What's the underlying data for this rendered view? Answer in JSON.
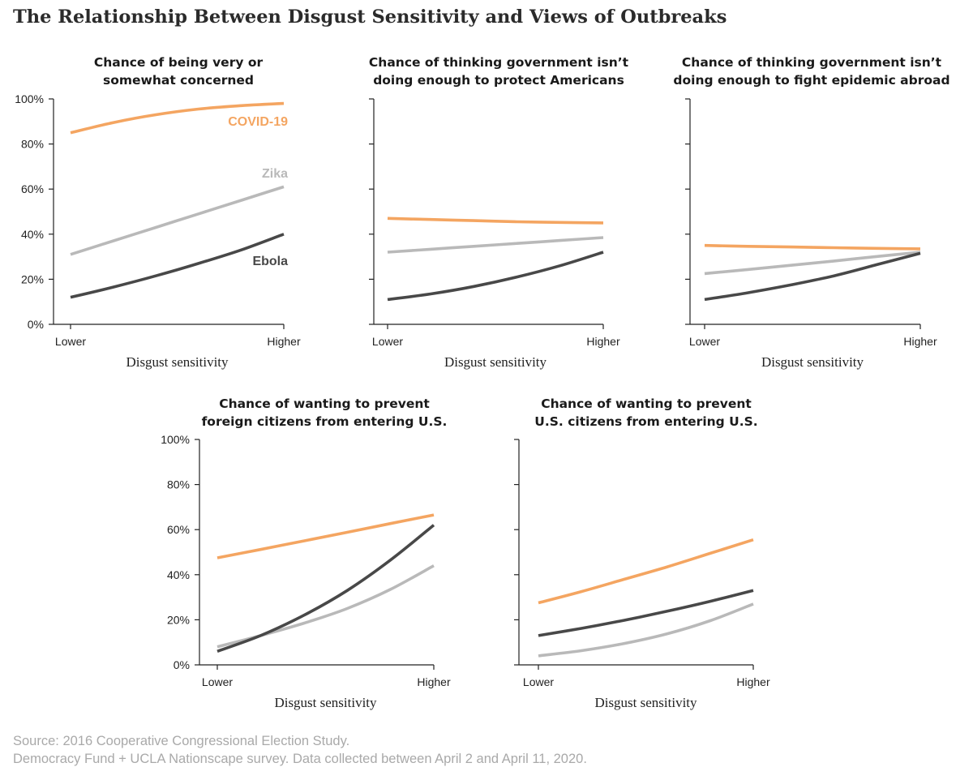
{
  "title": "The Relationship Between Disgust Sensitivity and Views of Outbreaks",
  "source": {
    "line1": "Source: 2016 Cooperative Congressional Election Study.",
    "line2": " Democracy Fund + UCLA Nationscape survey. Data collected between April 2 and April 11, 2020."
  },
  "colors": {
    "covid": "#f4a561",
    "zika": "#b9b9b9",
    "ebola": "#484848",
    "axis": "#222222"
  },
  "chart_data": [
    {
      "type": "line",
      "title": [
        "Chance of being very or",
        "somewhat concerned"
      ],
      "xlabel": "Disgust sensitivity",
      "x_ticks": [
        "Lower",
        "Higher"
      ],
      "ylabel": "",
      "ylim": [
        0,
        100
      ],
      "y_ticks": [
        "0%",
        "20%",
        "40%",
        "60%",
        "80%",
        "100%"
      ],
      "series_labels": [
        {
          "series": "covid",
          "text": "COVID-19"
        },
        {
          "series": "zika",
          "text": "Zika"
        },
        {
          "series": "ebola",
          "text": "Ebola"
        }
      ],
      "series": [
        {
          "key": "covid",
          "name": "COVID-19",
          "values": [
            85,
            89.5,
            93,
            95.5,
            97,
            98
          ]
        },
        {
          "key": "zika",
          "name": "Zika",
          "values": [
            31,
            37,
            43,
            49,
            55,
            61
          ]
        },
        {
          "key": "ebola",
          "name": "Ebola",
          "values": [
            12,
            16.5,
            21.5,
            27,
            33,
            40
          ]
        }
      ]
    },
    {
      "type": "line",
      "title": [
        "Chance of thinking government isn’t",
        "doing enough to protect Americans"
      ],
      "xlabel": "Disgust sensitivity",
      "x_ticks": [
        "Lower",
        "Higher"
      ],
      "ylim": [
        0,
        100
      ],
      "series": [
        {
          "key": "covid",
          "values": [
            47,
            46.5,
            46,
            45.5,
            45.2,
            45
          ]
        },
        {
          "key": "zika",
          "values": [
            32,
            33.3,
            34.6,
            35.9,
            37.2,
            38.5
          ]
        },
        {
          "key": "ebola",
          "values": [
            11,
            13.5,
            16.8,
            21,
            26,
            32
          ]
        }
      ]
    },
    {
      "type": "line",
      "title": [
        "Chance of thinking government isn’t",
        "doing enough to fight epidemic abroad"
      ],
      "xlabel": "Disgust sensitivity",
      "x_ticks": [
        "Lower",
        "Higher"
      ],
      "ylim": [
        0,
        100
      ],
      "series": [
        {
          "key": "covid",
          "values": [
            35,
            34.6,
            34.3,
            34,
            33.7,
            33.5
          ]
        },
        {
          "key": "zika",
          "values": [
            22.5,
            24.3,
            26.2,
            28.1,
            30.1,
            32
          ]
        },
        {
          "key": "ebola",
          "values": [
            11,
            14,
            17.5,
            21.5,
            26.5,
            31.5
          ]
        }
      ]
    },
    {
      "type": "line",
      "title": [
        "Chance of wanting to prevent",
        "foreign citizens from entering U.S."
      ],
      "xlabel": "Disgust sensitivity",
      "x_ticks": [
        "Lower",
        "Higher"
      ],
      "ylabel": "",
      "ylim": [
        0,
        100
      ],
      "y_ticks": [
        "0%",
        "20%",
        "40%",
        "60%",
        "80%",
        "100%"
      ],
      "series": [
        {
          "key": "covid",
          "values": [
            47.5,
            51.2,
            55,
            58.8,
            62.7,
            66.5
          ]
        },
        {
          "key": "zika",
          "values": [
            8,
            13,
            18.5,
            25,
            33.5,
            44
          ]
        },
        {
          "key": "ebola",
          "values": [
            6,
            13,
            22,
            33,
            46.5,
            62
          ]
        }
      ]
    },
    {
      "type": "line",
      "title": [
        "Chance of wanting to prevent",
        "U.S. citizens from entering U.S."
      ],
      "xlabel": "Disgust sensitivity",
      "x_ticks": [
        "Lower",
        "Higher"
      ],
      "ylim": [
        0,
        100
      ],
      "series": [
        {
          "key": "covid",
          "values": [
            27.5,
            32.5,
            38,
            43.5,
            49.5,
            55.5
          ]
        },
        {
          "key": "zika",
          "values": [
            4,
            6.3,
            9.5,
            13.8,
            19.6,
            27
          ]
        },
        {
          "key": "ebola",
          "values": [
            13,
            16.2,
            19.8,
            23.8,
            28.2,
            33
          ]
        }
      ]
    }
  ]
}
